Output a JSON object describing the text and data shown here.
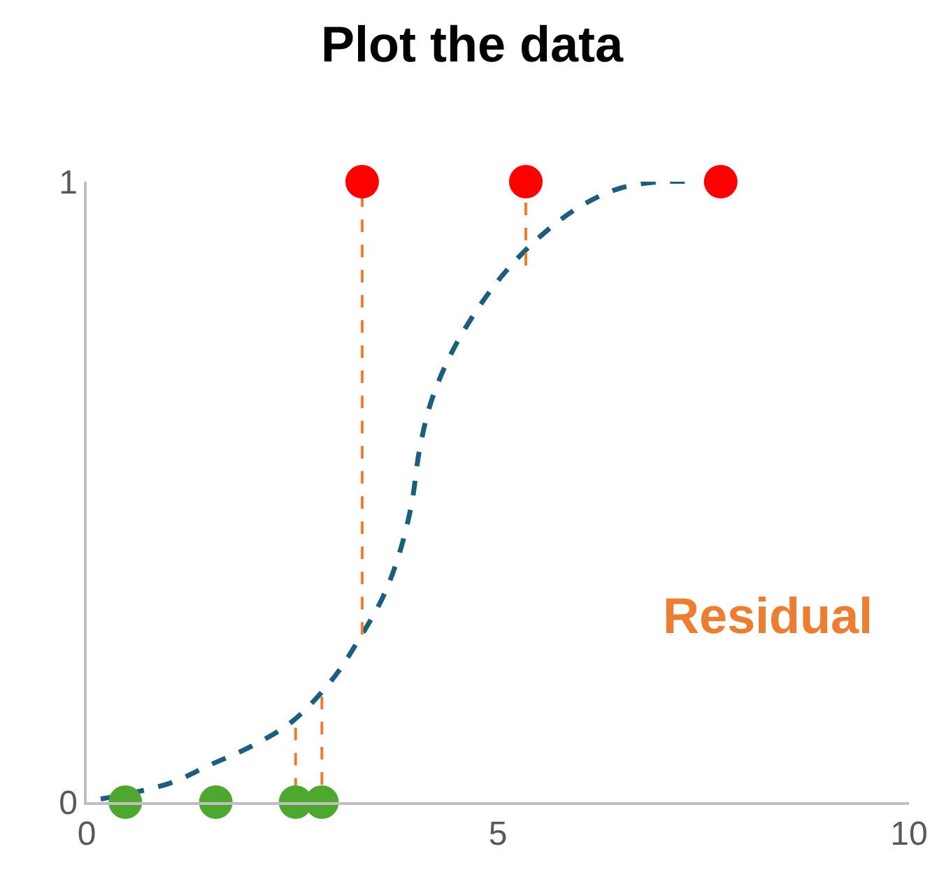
{
  "chart_data": {
    "type": "scatter",
    "title": "Plot the data",
    "xlim": [
      0,
      10
    ],
    "xticks": [
      0,
      5,
      10
    ],
    "ylim": [
      0,
      1
    ],
    "yticks": [
      0,
      1
    ],
    "series": [
      {
        "type": "line",
        "color": "#1b5e7e",
        "line_style": "dashed",
        "marker": "none",
        "x": [
          0.17,
          1,
          1.5,
          2,
          2.5,
          3,
          3.3,
          3.6,
          3.8,
          3.95,
          4.05,
          4.2,
          4.5,
          5,
          5.5,
          6,
          6.5,
          7,
          7.4
        ],
        "values": [
          0.005,
          0.03,
          0.06,
          0.09,
          0.13,
          0.2,
          0.26,
          0.33,
          0.4,
          0.48,
          0.57,
          0.65,
          0.74,
          0.84,
          0.91,
          0.96,
          0.99,
          1.0,
          1.0
        ]
      },
      {
        "type": "line",
        "color": "#ed7d31",
        "line_style": "dashed",
        "marker": "none",
        "x": [
          2.54,
          2.54
        ],
        "values": [
          0.12,
          0
        ]
      },
      {
        "type": "line",
        "color": "#ed7d31",
        "line_style": "dashed",
        "marker": "none",
        "x": [
          2.86,
          2.86
        ],
        "values": [
          0.17,
          0
        ]
      },
      {
        "type": "line",
        "color": "#ed7d31",
        "line_style": "dashed",
        "marker": "none",
        "x": [
          3.35,
          3.35
        ],
        "values": [
          0.27,
          1
        ]
      },
      {
        "type": "line",
        "color": "#ed7d31",
        "line_style": "dashed",
        "marker": "none",
        "x": [
          5.34,
          5.34
        ],
        "values": [
          0.865,
          1
        ]
      },
      {
        "color": "#4ea72e",
        "marker": "circle",
        "x": [
          0.47,
          1.57,
          2.54,
          2.86
        ],
        "values": [
          0,
          0,
          0,
          0
        ]
      },
      {
        "color": "#ff0000",
        "marker": "circle",
        "x": [
          3.35,
          5.34,
          7.71
        ],
        "values": [
          1,
          1,
          1
        ]
      }
    ],
    "annotations": [
      "Residual"
    ]
  }
}
